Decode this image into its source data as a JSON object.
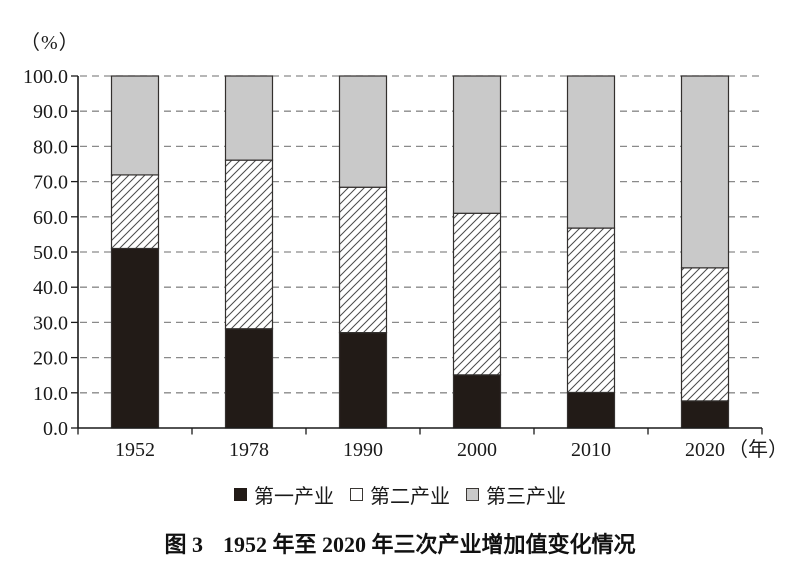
{
  "figure": {
    "unit_label": "（%）",
    "x_unit_label": "（年）",
    "caption_prefix": "图 3",
    "caption_text": "1952 年至 2020 年三次产业增加值变化情况"
  },
  "legend": {
    "items": [
      {
        "label": "第一产业",
        "swatch": "solid-black"
      },
      {
        "label": "第二产业",
        "swatch": "hatch-white"
      },
      {
        "label": "第三产业",
        "swatch": "solid-gray"
      }
    ]
  },
  "colors": {
    "primary_fill": "#221b17",
    "secondary_fill": "#ffffff",
    "secondary_hatch_line": "#4a4a4a",
    "tertiary_fill": "#c9c9c9",
    "bar_border": "#33302e",
    "gridline": "#8a8a8a",
    "axis": "#1a1a1a",
    "text": "#1a1a1a"
  },
  "chart_data": {
    "type": "bar",
    "stacked": true,
    "title": "图 3 1952 年至 2020 年三次产业增加值变化情况",
    "xlabel": "年",
    "ylabel": "%",
    "ylim": [
      0,
      100
    ],
    "ytick_step": 10,
    "ytick_labels": [
      "0.0",
      "10.0",
      "20.0",
      "30.0",
      "40.0",
      "50.0",
      "60.0",
      "70.0",
      "80.0",
      "90.0",
      "100.0"
    ],
    "grid": "horizontal-dashed",
    "legend_position": "bottom",
    "categories": [
      "1952",
      "1978",
      "1990",
      "2000",
      "2010",
      "2020"
    ],
    "series": [
      {
        "name": "第一产业",
        "style": "solid-black",
        "values": [
          51.0,
          28.2,
          27.1,
          15.1,
          10.1,
          7.7
        ]
      },
      {
        "name": "第二产业",
        "style": "hatch-white",
        "values": [
          20.9,
          47.9,
          41.3,
          45.9,
          46.7,
          37.8
        ]
      },
      {
        "name": "第三产业",
        "style": "solid-gray",
        "values": [
          28.1,
          23.9,
          31.6,
          39.0,
          43.2,
          54.5
        ]
      }
    ]
  }
}
